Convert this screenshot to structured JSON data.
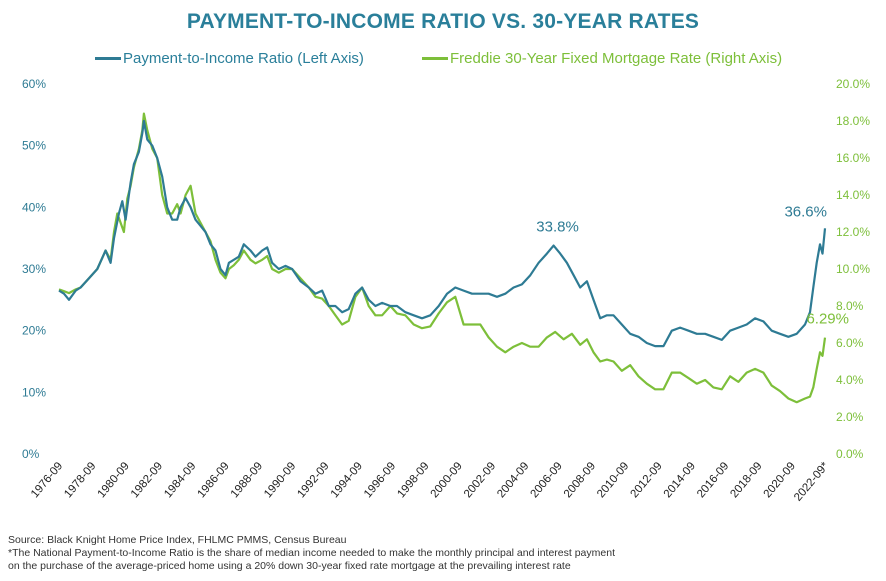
{
  "title": "PAYMENT-TO-INCOME RATIO VS. 30-YEAR RATES",
  "colors": {
    "pti": "#2e7b94",
    "rate": "#7dbf3a",
    "title": "#2a7f9a"
  },
  "chart_data": {
    "type": "line",
    "title": "PAYMENT-TO-INCOME RATIO VS. 30-YEAR RATES",
    "legend_position": "top",
    "grid": false,
    "left_axis": {
      "min": 0,
      "max": 60,
      "ticks": [
        "0%",
        "10%",
        "20%",
        "30%",
        "40%",
        "50%",
        "60%"
      ]
    },
    "right_axis": {
      "min": 0,
      "max": 20,
      "ticks": [
        "0.0%",
        "2.0%",
        "4.0%",
        "6.0%",
        "8.0%",
        "10.0%",
        "12.0%",
        "14.0%",
        "16.0%",
        "18.0%",
        "20.0%"
      ]
    },
    "x_labels": [
      "1976-09",
      "1978-09",
      "1980-09",
      "1982-09",
      "1984-09",
      "1986-09",
      "1988-09",
      "1990-09",
      "1992-09",
      "1994-09",
      "1996-09",
      "1998-09",
      "2000-09",
      "2002-09",
      "2004-09",
      "2006-09",
      "2008-09",
      "2010-09",
      "2012-09",
      "2014-09",
      "2016-09",
      "2018-09",
      "2020-09",
      "2022-09*"
    ],
    "series": [
      {
        "name": "Payment-to-Income Ratio (Left Axis)",
        "axis": "left",
        "points": [
          [
            1976.7,
            26.5
          ],
          [
            1977.0,
            26.0
          ],
          [
            1977.3,
            25.0
          ],
          [
            1977.7,
            26.5
          ],
          [
            1978.0,
            27.0
          ],
          [
            1978.5,
            28.5
          ],
          [
            1979.0,
            30.0
          ],
          [
            1979.5,
            33.0
          ],
          [
            1979.8,
            31.0
          ],
          [
            1980.0,
            35.0
          ],
          [
            1980.3,
            39.0
          ],
          [
            1980.5,
            41.0
          ],
          [
            1980.7,
            38.0
          ],
          [
            1980.9,
            42.0
          ],
          [
            1981.0,
            44.0
          ],
          [
            1981.2,
            47.0
          ],
          [
            1981.5,
            49.0
          ],
          [
            1981.7,
            52.0
          ],
          [
            1981.8,
            54.0
          ],
          [
            1982.0,
            51.0
          ],
          [
            1982.3,
            50.0
          ],
          [
            1982.6,
            48.0
          ],
          [
            1982.9,
            45.0
          ],
          [
            1983.2,
            40.0
          ],
          [
            1983.5,
            38.0
          ],
          [
            1983.8,
            38.0
          ],
          [
            1984.0,
            40.0
          ],
          [
            1984.3,
            41.5
          ],
          [
            1984.6,
            40.0
          ],
          [
            1984.9,
            38.0
          ],
          [
            1985.2,
            37.0
          ],
          [
            1985.5,
            36.0
          ],
          [
            1985.8,
            34.0
          ],
          [
            1986.1,
            33.0
          ],
          [
            1986.4,
            30.0
          ],
          [
            1986.7,
            29.0
          ],
          [
            1986.9,
            31.0
          ],
          [
            1987.2,
            31.5
          ],
          [
            1987.5,
            32.0
          ],
          [
            1987.8,
            34.0
          ],
          [
            1988.2,
            33.0
          ],
          [
            1988.5,
            32.0
          ],
          [
            1988.9,
            33.0
          ],
          [
            1989.2,
            33.5
          ],
          [
            1989.5,
            31.0
          ],
          [
            1989.9,
            30.0
          ],
          [
            1990.3,
            30.5
          ],
          [
            1990.7,
            30.0
          ],
          [
            1991.2,
            28.0
          ],
          [
            1991.7,
            27.0
          ],
          [
            1992.1,
            26.0
          ],
          [
            1992.5,
            26.5
          ],
          [
            1992.9,
            24.0
          ],
          [
            1993.3,
            24.0
          ],
          [
            1993.7,
            23.0
          ],
          [
            1994.1,
            23.5
          ],
          [
            1994.5,
            26.0
          ],
          [
            1994.9,
            27.0
          ],
          [
            1995.3,
            25.0
          ],
          [
            1995.7,
            24.0
          ],
          [
            1996.1,
            24.5
          ],
          [
            1996.6,
            24.0
          ],
          [
            1997.0,
            24.0
          ],
          [
            1997.5,
            23.0
          ],
          [
            1998.0,
            22.5
          ],
          [
            1998.5,
            22.0
          ],
          [
            1999.0,
            22.5
          ],
          [
            1999.5,
            24.0
          ],
          [
            2000.0,
            26.0
          ],
          [
            2000.5,
            27.0
          ],
          [
            2001.0,
            26.5
          ],
          [
            2001.5,
            26.0
          ],
          [
            2002.0,
            26.0
          ],
          [
            2002.5,
            26.0
          ],
          [
            2003.0,
            25.5
          ],
          [
            2003.5,
            26.0
          ],
          [
            2004.0,
            27.0
          ],
          [
            2004.5,
            27.5
          ],
          [
            2005.0,
            29.0
          ],
          [
            2005.5,
            31.0
          ],
          [
            2006.0,
            32.5
          ],
          [
            2006.4,
            33.8
          ],
          [
            2006.8,
            32.5
          ],
          [
            2007.2,
            31.0
          ],
          [
            2007.6,
            29.0
          ],
          [
            2008.0,
            27.0
          ],
          [
            2008.4,
            28.0
          ],
          [
            2008.8,
            25.0
          ],
          [
            2009.2,
            22.0
          ],
          [
            2009.6,
            22.5
          ],
          [
            2010.0,
            22.5
          ],
          [
            2010.5,
            21.0
          ],
          [
            2011.0,
            19.5
          ],
          [
            2011.5,
            19.0
          ],
          [
            2012.0,
            18.0
          ],
          [
            2012.5,
            17.5
          ],
          [
            2013.0,
            17.5
          ],
          [
            2013.5,
            20.0
          ],
          [
            2014.0,
            20.5
          ],
          [
            2014.5,
            20.0
          ],
          [
            2015.0,
            19.5
          ],
          [
            2015.5,
            19.5
          ],
          [
            2016.0,
            19.0
          ],
          [
            2016.5,
            18.5
          ],
          [
            2017.0,
            20.0
          ],
          [
            2017.5,
            20.5
          ],
          [
            2018.0,
            21.0
          ],
          [
            2018.5,
            22.0
          ],
          [
            2019.0,
            21.5
          ],
          [
            2019.5,
            20.0
          ],
          [
            2020.0,
            19.5
          ],
          [
            2020.5,
            19.0
          ],
          [
            2021.0,
            19.5
          ],
          [
            2021.5,
            21.0
          ],
          [
            2021.8,
            23.0
          ],
          [
            2022.0,
            27.0
          ],
          [
            2022.2,
            31.0
          ],
          [
            2022.4,
            34.0
          ],
          [
            2022.55,
            32.5
          ],
          [
            2022.7,
            36.6
          ]
        ]
      },
      {
        "name": "Freddie 30-Year Fixed Mortgage Rate (Right Axis)",
        "axis": "right",
        "points": [
          [
            1976.7,
            8.9
          ],
          [
            1977.0,
            8.8
          ],
          [
            1977.3,
            8.7
          ],
          [
            1977.7,
            8.9
          ],
          [
            1978.0,
            9.0
          ],
          [
            1978.5,
            9.5
          ],
          [
            1979.0,
            10.0
          ],
          [
            1979.5,
            11.0
          ],
          [
            1979.8,
            10.5
          ],
          [
            1980.0,
            12.0
          ],
          [
            1980.2,
            13.0
          ],
          [
            1980.4,
            12.5
          ],
          [
            1980.6,
            12.0
          ],
          [
            1980.8,
            13.8
          ],
          [
            1981.0,
            14.5
          ],
          [
            1981.2,
            15.5
          ],
          [
            1981.5,
            16.5
          ],
          [
            1981.7,
            17.5
          ],
          [
            1981.8,
            18.4
          ],
          [
            1982.0,
            17.5
          ],
          [
            1982.3,
            16.5
          ],
          [
            1982.6,
            16.0
          ],
          [
            1982.9,
            14.0
          ],
          [
            1983.2,
            13.0
          ],
          [
            1983.5,
            13.0
          ],
          [
            1983.8,
            13.5
          ],
          [
            1984.0,
            13.0
          ],
          [
            1984.3,
            14.0
          ],
          [
            1984.6,
            14.5
          ],
          [
            1984.9,
            13.0
          ],
          [
            1985.2,
            12.5
          ],
          [
            1985.5,
            12.0
          ],
          [
            1985.8,
            11.5
          ],
          [
            1986.1,
            10.5
          ],
          [
            1986.4,
            9.8
          ],
          [
            1986.7,
            9.5
          ],
          [
            1986.9,
            10.0
          ],
          [
            1987.2,
            10.2
          ],
          [
            1987.5,
            10.5
          ],
          [
            1987.8,
            11.0
          ],
          [
            1988.2,
            10.5
          ],
          [
            1988.5,
            10.3
          ],
          [
            1988.9,
            10.5
          ],
          [
            1989.2,
            10.7
          ],
          [
            1989.5,
            10.0
          ],
          [
            1989.9,
            9.8
          ],
          [
            1990.3,
            10.0
          ],
          [
            1990.7,
            10.0
          ],
          [
            1991.2,
            9.5
          ],
          [
            1991.7,
            9.0
          ],
          [
            1992.1,
            8.5
          ],
          [
            1992.5,
            8.4
          ],
          [
            1992.9,
            8.0
          ],
          [
            1993.3,
            7.5
          ],
          [
            1993.7,
            7.0
          ],
          [
            1994.1,
            7.2
          ],
          [
            1994.5,
            8.5
          ],
          [
            1994.9,
            9.0
          ],
          [
            1995.3,
            8.0
          ],
          [
            1995.7,
            7.5
          ],
          [
            1996.1,
            7.5
          ],
          [
            1996.6,
            8.0
          ],
          [
            1997.0,
            7.6
          ],
          [
            1997.5,
            7.5
          ],
          [
            1998.0,
            7.0
          ],
          [
            1998.5,
            6.8
          ],
          [
            1999.0,
            6.9
          ],
          [
            1999.5,
            7.6
          ],
          [
            2000.0,
            8.2
          ],
          [
            2000.5,
            8.5
          ],
          [
            2001.0,
            7.0
          ],
          [
            2001.5,
            7.0
          ],
          [
            2002.0,
            7.0
          ],
          [
            2002.5,
            6.3
          ],
          [
            2003.0,
            5.8
          ],
          [
            2003.5,
            5.5
          ],
          [
            2004.0,
            5.8
          ],
          [
            2004.5,
            6.0
          ],
          [
            2005.0,
            5.8
          ],
          [
            2005.5,
            5.8
          ],
          [
            2006.0,
            6.3
          ],
          [
            2006.5,
            6.6
          ],
          [
            2007.0,
            6.2
          ],
          [
            2007.5,
            6.5
          ],
          [
            2008.0,
            5.9
          ],
          [
            2008.4,
            6.2
          ],
          [
            2008.8,
            5.5
          ],
          [
            2009.2,
            5.0
          ],
          [
            2009.6,
            5.1
          ],
          [
            2010.0,
            5.0
          ],
          [
            2010.5,
            4.5
          ],
          [
            2011.0,
            4.8
          ],
          [
            2011.5,
            4.2
          ],
          [
            2012.0,
            3.8
          ],
          [
            2012.5,
            3.5
          ],
          [
            2013.0,
            3.5
          ],
          [
            2013.5,
            4.4
          ],
          [
            2014.0,
            4.4
          ],
          [
            2014.5,
            4.1
          ],
          [
            2015.0,
            3.8
          ],
          [
            2015.5,
            4.0
          ],
          [
            2016.0,
            3.6
          ],
          [
            2016.5,
            3.5
          ],
          [
            2017.0,
            4.2
          ],
          [
            2017.5,
            3.9
          ],
          [
            2018.0,
            4.4
          ],
          [
            2018.5,
            4.6
          ],
          [
            2019.0,
            4.4
          ],
          [
            2019.5,
            3.7
          ],
          [
            2020.0,
            3.4
          ],
          [
            2020.5,
            3.0
          ],
          [
            2021.0,
            2.8
          ],
          [
            2021.5,
            3.0
          ],
          [
            2021.8,
            3.1
          ],
          [
            2022.0,
            3.6
          ],
          [
            2022.2,
            4.6
          ],
          [
            2022.4,
            5.5
          ],
          [
            2022.55,
            5.3
          ],
          [
            2022.7,
            6.29
          ]
        ]
      }
    ],
    "annotations": [
      {
        "text": "33.8%",
        "series": 0,
        "x": 2006.4,
        "y": 33.8
      },
      {
        "text": "36.6%",
        "series": 0,
        "x": 2022.7,
        "y": 36.6
      },
      {
        "text": "6.29%",
        "series": 1,
        "x": 2022.7,
        "y": 6.29
      }
    ]
  },
  "footer": {
    "source": "Source: Black Knight Home Price Index, FHLMC PMMS, Census Bureau",
    "note_line1": "*The National Payment-to-Income Ratio is the share of median income needed to make the monthly principal and interest payment",
    "note_line2": "on the purchase of the average-priced home using a 20% down 30-year fixed rate mortgage at the prevailing interest rate"
  }
}
